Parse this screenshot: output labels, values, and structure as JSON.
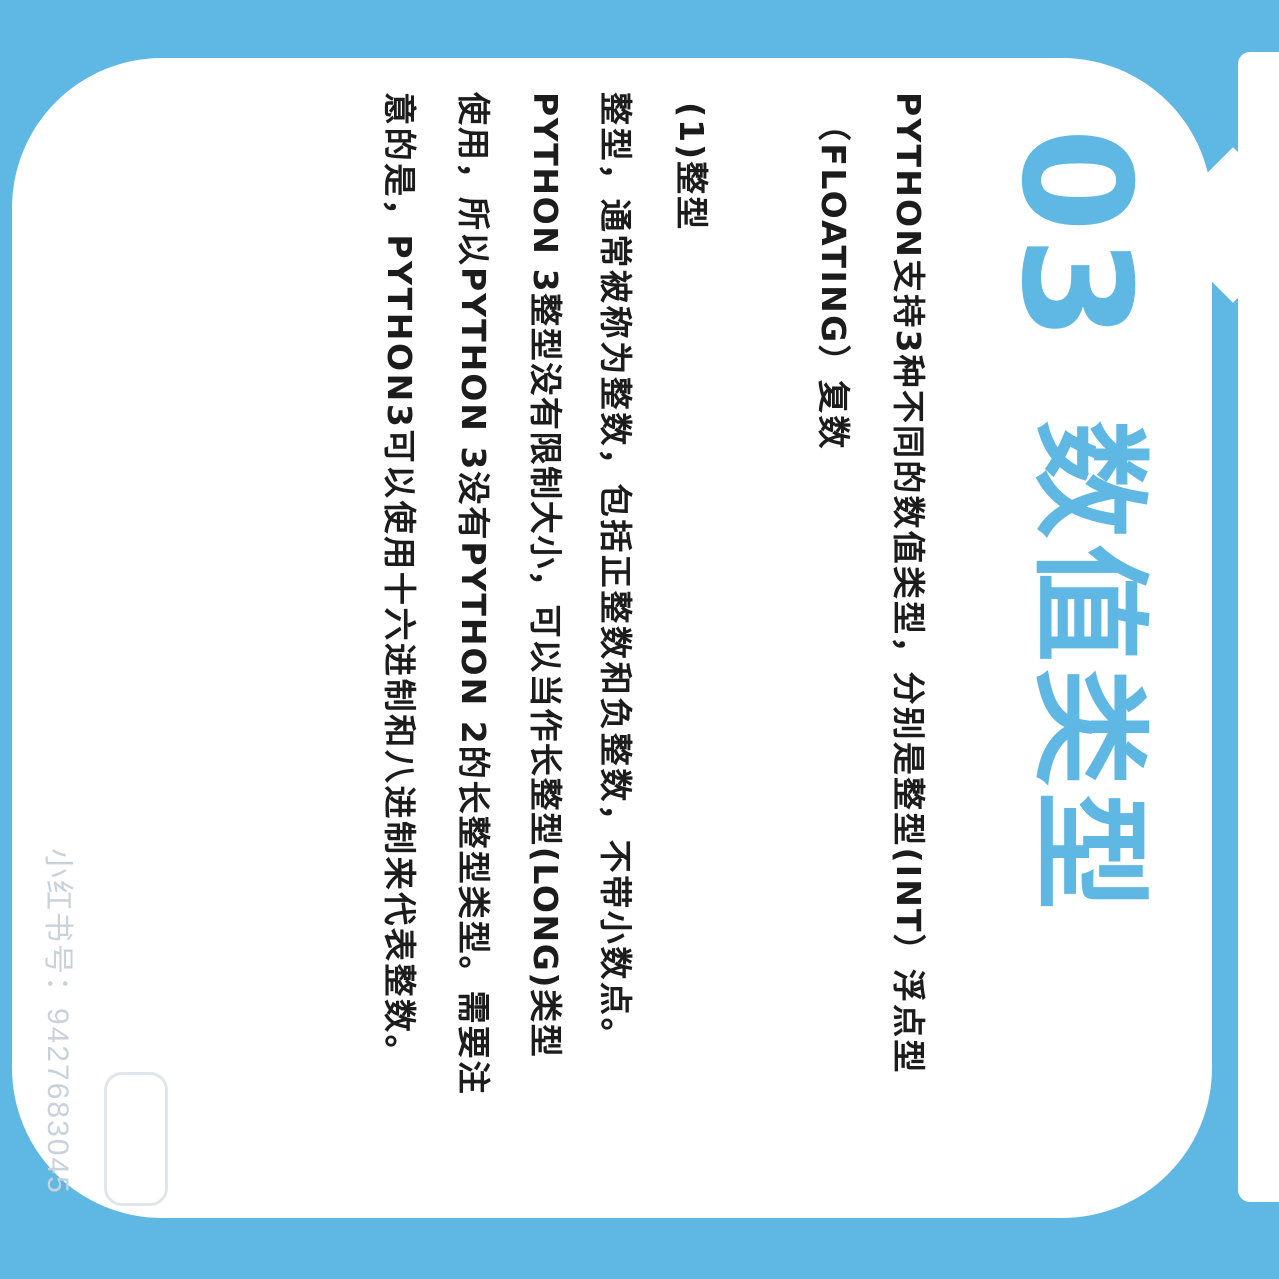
{
  "colors": {
    "accent": "#5fb8e4",
    "card": "#ffffff",
    "text": "#1c1c1c",
    "watermark": "#c8d2da"
  },
  "header": {
    "number": "03",
    "title": "数值类型"
  },
  "body": {
    "lines": [
      "PYTHON支持3种不同的数值类型，分别是整型(INT）浮点型",
      "（FLOATING）复数",
      "(1)整型",
      "整型，通常被称为整数，包括正整数和负整数，不带小数点。",
      "PYTHON 3整型没有限制大小，可以当作长整型(LONG)类型",
      "使用，所以PYTHON 3没有PYTHON 2的长整型类型。需要注",
      "意的是，PYTHON3可以使用十六进制和八进制来代表整数。"
    ]
  },
  "watermark": {
    "text": "小红书号：9427683045"
  }
}
